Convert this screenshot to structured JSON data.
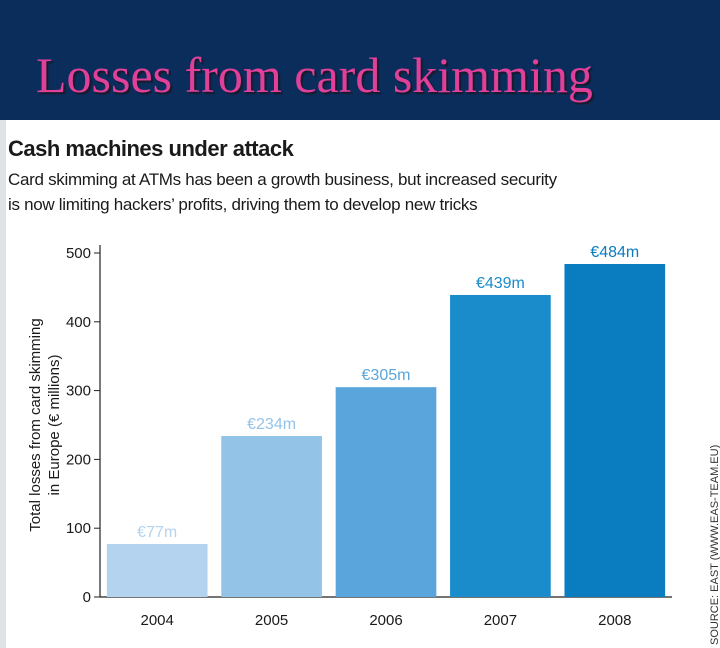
{
  "slide": {
    "title": "Losses from card skimming",
    "header_color": "#0b2d5c",
    "title_color": "#e0409a"
  },
  "source_note": "SOURCE: EAST (WWW.EAS-TEAM.EU)",
  "chart_data": {
    "type": "bar",
    "title": "Cash machines under attack",
    "subtitle_lines": [
      "Card skimming at ATMs has been a growth business, but increased security",
      "is now limiting hackers’ profits, driving them to develop new tricks"
    ],
    "categories": [
      "2004",
      "2005",
      "2006",
      "2007",
      "2008"
    ],
    "values": [
      77,
      234,
      305,
      439,
      484
    ],
    "data_labels": [
      "€77m",
      "€234m",
      "€305m",
      "€439m",
      "€484m"
    ],
    "bar_colors": [
      "#b3d3ee",
      "#94c3e8",
      "#5aa6dc",
      "#1a8ccc",
      "#0a7cc0"
    ],
    "ylabel_lines": [
      "Total losses from card skimming",
      "in Europe (€ millions)"
    ],
    "xlabel": "",
    "ylim": [
      0,
      500
    ],
    "yticks": [
      0,
      100,
      200,
      300,
      400,
      500
    ],
    "grid": false
  }
}
